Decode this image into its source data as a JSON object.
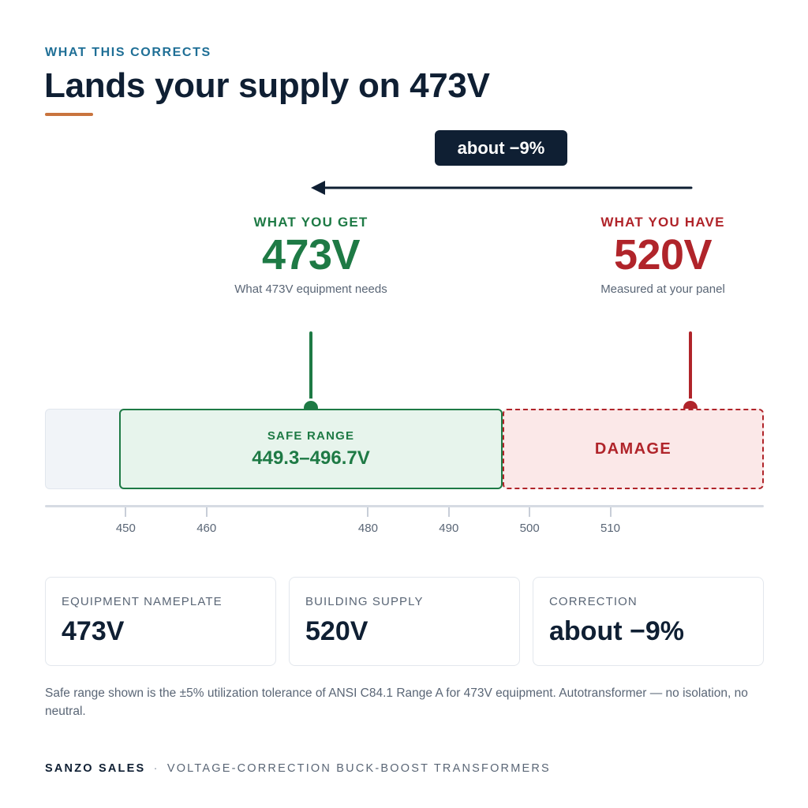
{
  "header": {
    "eyebrow": "WHAT THIS CORRECTS",
    "title": "Lands your supply on 473V"
  },
  "delta": {
    "label": "about −9%"
  },
  "targets": {
    "get": {
      "label": "WHAT YOU GET",
      "value": "473V",
      "caption": "What 473V equipment needs",
      "volts": 473
    },
    "have": {
      "label": "WHAT YOU HAVE",
      "value": "520V",
      "caption": "Measured at your panel",
      "volts": 520
    }
  },
  "scale": {
    "min": 440,
    "max": 529,
    "ticks": [
      "450",
      "460",
      "480",
      "490",
      "500",
      "510"
    ],
    "safe": {
      "label": "SAFE RANGE",
      "range": "449.3–496.7V",
      "low": 449.3,
      "high": 496.7
    },
    "damage": {
      "label": "DAMAGE"
    }
  },
  "colors": {
    "safe": "#1e7a45",
    "damage": "#b0242a",
    "accent": "#c9743e",
    "ink": "#0f1f33"
  },
  "cards": [
    {
      "label": "EQUIPMENT NAMEPLATE",
      "value": "473V"
    },
    {
      "label": "BUILDING SUPPLY",
      "value": "520V"
    },
    {
      "label": "CORRECTION",
      "value": "about −9%"
    }
  ],
  "footnote": "Safe range shown is the ±5% utilization tolerance of ANSI C84.1 Range A for 473V equipment. Autotransformer — no isolation, no neutral.",
  "footer": {
    "brand": "SANZO SALES",
    "separator": "·",
    "tagline": "VOLTAGE-CORRECTION BUCK-BOOST TRANSFORMERS"
  }
}
